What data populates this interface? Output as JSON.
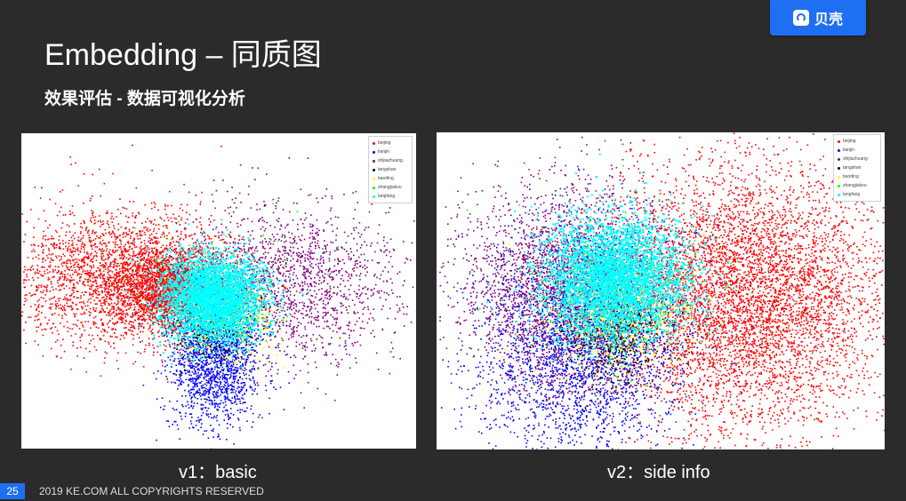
{
  "logo": {
    "text": "贝壳",
    "icon": "ke-logo-icon",
    "color": "#1e6ff2"
  },
  "title": "Embedding – 同质图",
  "subtitle": "效果评估 - 数据可视化分析",
  "legend": [
    {
      "label": "beijing",
      "color": "#ff0000"
    },
    {
      "label": "tianjin",
      "color": "#0000ff"
    },
    {
      "label": "shijiazhuang",
      "color": "#800080"
    },
    {
      "label": "tangshan",
      "color": "#000000"
    },
    {
      "label": "baoding",
      "color": "#ffff00"
    },
    {
      "label": "zhangjiakou",
      "color": "#00ff00"
    },
    {
      "label": "langfang",
      "color": "#00ffff"
    }
  ],
  "panels": [
    {
      "caption": "v1：basic"
    },
    {
      "caption": "v2：side info"
    }
  ],
  "footer": {
    "page_number": "25",
    "copyright": "2019 KE.COM ALL COPYRIGHTS RESERVED"
  }
}
